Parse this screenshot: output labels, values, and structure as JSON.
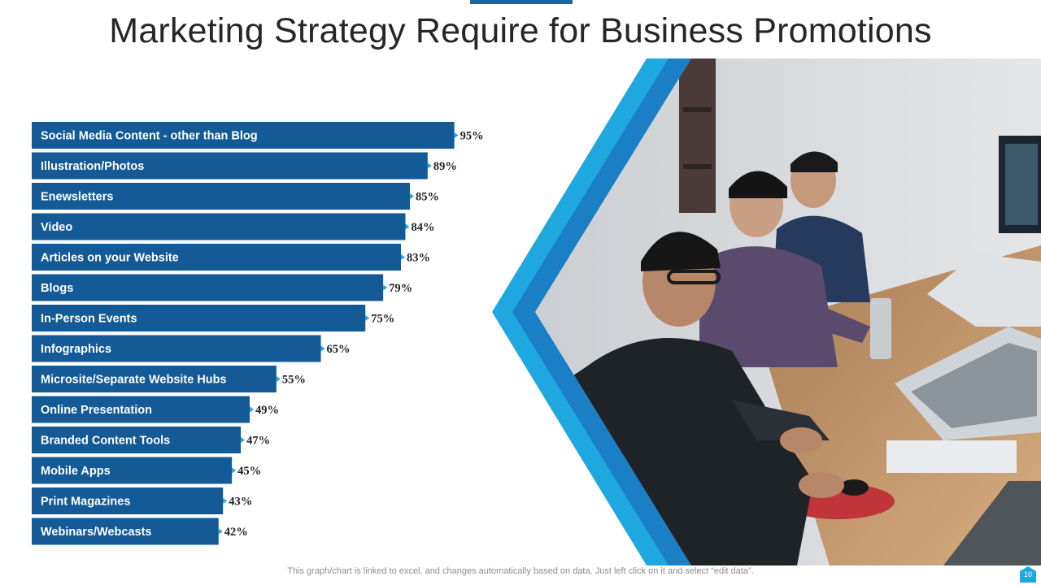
{
  "title": "Marketing Strategy Require for Business Promotions",
  "chart_data": {
    "type": "bar",
    "orientation": "horizontal",
    "categories": [
      "Social Media Content - other than Blog",
      "Illustration/Photos",
      "Enewsletters",
      "Video",
      "Articles on your Website",
      "Blogs",
      "In-Person Events",
      "Infographics",
      "Microsite/Separate Website Hubs",
      "Online Presentation",
      "Branded Content Tools",
      "Mobile Apps",
      "Print Magazines",
      "Webinars/Webcasts"
    ],
    "values": [
      95,
      89,
      85,
      84,
      83,
      79,
      75,
      65,
      55,
      49,
      47,
      45,
      43,
      42
    ],
    "value_labels": [
      "95%",
      "89%",
      "85%",
      "84%",
      "83%",
      "79%",
      "75%",
      "65%",
      "55%",
      "49%",
      "47%",
      "45%",
      "43%",
      "42%"
    ],
    "unit": "%",
    "xlim": [
      0,
      100
    ],
    "grid": false,
    "legend": "none",
    "bar_color": "#135a97"
  },
  "colors": {
    "accent": "#1565a8",
    "frame_light": "#1fa8e0",
    "frame_dark": "#1565a8"
  },
  "footnote": "This graph/chart is linked to excel, and changes automatically based on data. Just left click on it and select “edit data”.",
  "page_number": "10"
}
